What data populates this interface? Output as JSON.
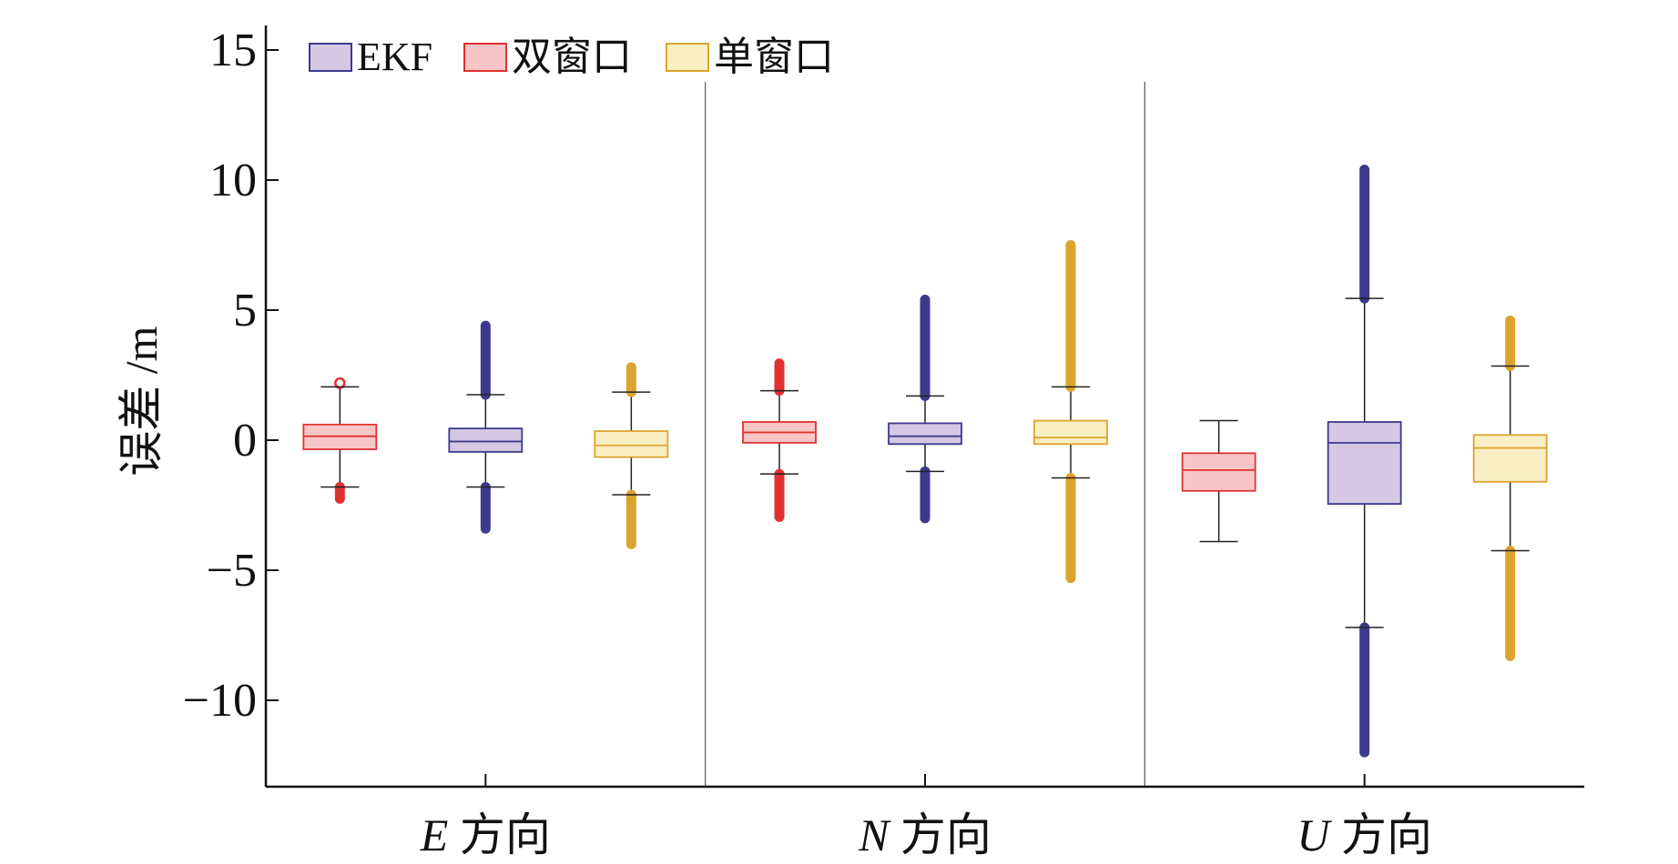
{
  "chart_data": {
    "type": "box",
    "title": "",
    "xlabel": "",
    "ylabel": "误差 /m",
    "ylim": [
      -13.9,
      16.5
    ],
    "yticks": [
      15,
      10,
      5,
      0,
      -5,
      -10
    ],
    "ytick_labels": [
      "15",
      "10",
      "5",
      "0",
      "−5",
      "−10"
    ],
    "grid": false,
    "legend_position": "top-left",
    "groups": [
      {
        "label_italic": "E",
        "label_rest": "方向"
      },
      {
        "label_italic": "N",
        "label_rest": "方向"
      },
      {
        "label_italic": "U",
        "label_rest": "方向"
      }
    ],
    "series": [
      {
        "name": "EKF",
        "fill": "#d4c8e3",
        "stroke": "#3d3a8c",
        "boxes": [
          {
            "group": 0,
            "q1": -0.45,
            "median": -0.05,
            "q3": 0.45,
            "whisker_low": -1.8,
            "whisker_high": 1.75,
            "outlier_low": [
              -3.4,
              -1.8
            ],
            "outlier_high": [
              1.75,
              4.4
            ]
          },
          {
            "group": 1,
            "q1": -0.15,
            "median": 0.15,
            "q3": 0.65,
            "whisker_low": -1.2,
            "whisker_high": 1.7,
            "outlier_low": [
              -3.0,
              -1.2
            ],
            "outlier_high": [
              1.7,
              5.4
            ]
          },
          {
            "group": 2,
            "q1": -2.45,
            "median": -0.1,
            "q3": 0.7,
            "whisker_low": -7.2,
            "whisker_high": 5.45,
            "outlier_low": [
              -12.0,
              -7.2
            ],
            "outlier_high": [
              5.45,
              10.4
            ]
          }
        ]
      },
      {
        "name": "双窗口",
        "fill": "#f8c6c6",
        "stroke": "#e03131",
        "boxes": [
          {
            "group": 0,
            "q1": -0.35,
            "median": 0.15,
            "q3": 0.6,
            "whisker_low": -1.8,
            "whisker_high": 2.05,
            "outlier_low": [
              -2.25,
              -1.8
            ],
            "outlier_high": [
              2.15,
              2.2
            ]
          },
          {
            "group": 1,
            "q1": -0.1,
            "median": 0.3,
            "q3": 0.7,
            "whisker_low": -1.3,
            "whisker_high": 1.9,
            "outlier_low": [
              -2.95,
              -1.3
            ],
            "outlier_high": [
              1.9,
              2.95
            ]
          },
          {
            "group": 2,
            "q1": -1.95,
            "median": -1.15,
            "q3": -0.5,
            "whisker_low": -3.9,
            "whisker_high": 0.75
          }
        ]
      },
      {
        "name": "单窗口",
        "fill": "#faefc4",
        "stroke": "#dca42c",
        "boxes": [
          {
            "group": 0,
            "q1": -0.65,
            "median": -0.2,
            "q3": 0.35,
            "whisker_low": -2.1,
            "whisker_high": 1.85,
            "outlier_low": [
              -4.0,
              -2.1
            ],
            "outlier_high": [
              1.85,
              2.8
            ]
          },
          {
            "group": 1,
            "q1": -0.15,
            "median": 0.1,
            "q3": 0.75,
            "whisker_low": -1.45,
            "whisker_high": 2.05,
            "outlier_low": [
              -5.3,
              -1.45
            ],
            "outlier_high": [
              2.05,
              7.5
            ]
          },
          {
            "group": 2,
            "q1": -1.6,
            "median": -0.3,
            "q3": 0.2,
            "whisker_low": -4.25,
            "whisker_high": 2.85,
            "outlier_low": [
              -8.3,
              -4.25
            ],
            "outlier_high": [
              2.85,
              4.6
            ]
          }
        ]
      }
    ],
    "box_order": [
      "双窗口",
      "EKF",
      "单窗口"
    ]
  }
}
